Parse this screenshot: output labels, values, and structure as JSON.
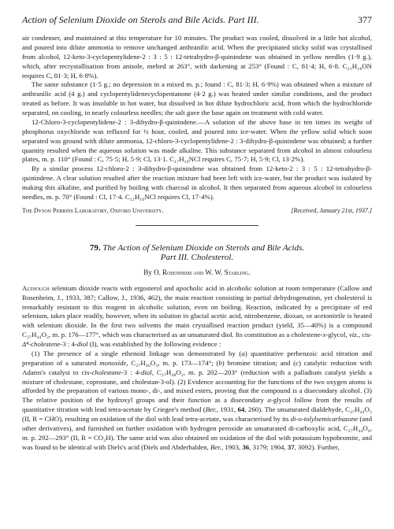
{
  "header": {
    "running_title": "Action of Selenium Dioxide on Sterols and Bile Acids. Part III.",
    "page_number": "377"
  },
  "paragraphs": {
    "p1": "air condenser, and maintained at this temperature for 10 minutes. The product was cooled, dissolved in a little hot alcohol, and poured into dilute ammonia to remove unchanged anthranilic acid. When the precipitated sticky solid was crystallised from alcohol, 12-keto-3-cyclopentylidene-2 : 3 : 5 : 12-tetrahydro-β-quinindene was obtained in yellow needles (1·9 g.), which, after recrystallisation from anisole, melted at 263°, with darkening at 253° (Found : C, 81·4; H, 6·8. C₂₁H₁₈ON requires C, 81·3; H, 6·8%).",
    "p2": "The same substance (1·5 g.; no depression in a mixed m. p.; found : C, 81·3; H, 6·9%) was obtained when a mixture of anthranilic acid (4 g.) and cyclopentylidenecyclopentanone (4·2 g.) was heated under similar conditions, and the product treated as before. It was insoluble in hot water, but dissolved in hot dilute hydrochloric acid, from which the hydrochloride separated, on cooling, in nearly colourless needles; the salt gave the base again on treatment with cold water.",
    "p3": "12-Chloro-3-cyclopentylidene-2 : 3-dihydro-β-quinindene.—A solution of the above base in ten times its weight of phosphorus oxychloride was refluxed for ½ hour, cooled, and poured into ice-water. When the yellow solid which soon separated was ground with dilute ammonia, 12-chloro-3-cyclopentylidene-2 : 3-dihydro-β-quinindene was obtained; a further quantity resulted when the aqueous solution was made alkaline. This substance separated from alcohol in almost colourless plates, m. p. 110° (Found : C, 75·5; H, 5·9; Cl, 13·1. C₁₇H₁₆NCl requires C, 75·7; H, 5·9; Cl, 13·2%).",
    "p4": "By a similar process 12-chloro-2 : 3-dihydro-β-quinindene was obtained from 12-keto-2 : 3 : 5 : 12-tetrahydro-β-quinindene. A clear solution resulted after the reaction mixture had been left with ice-water, but the product was isolated by making this alkaline, and purified by boiling with charcoal in alcohol. It then separated from aqueous alcohol in colourless needles, m. p. 70° (Found : Cl, 17·4. C₁₂H₁₀NCl requires Cl, 17·4%)."
  },
  "lab": {
    "name": "The Dyson Perrins Laboratory, Oxford University.",
    "received": "[Received, January 21st, 1937.]"
  },
  "article": {
    "number": "79.",
    "title_line1": "The Action of Selenium Dioxide on Sterols and Bile Acids.",
    "title_line2": "Part III. Cholesterol.",
    "byline_prefix": "By",
    "authors": "O. Rosenheim and W. W. Starling."
  },
  "body": {
    "b1": "Although selenium dioxide reacts with ergosterol and apocholic acid in alcoholic solution at room temperature (Callow and Rosenheim, J., 1933, 387; Callow, J., 1936, 462), the main reaction consisting in partial dehydrogenation, yet cholesterol is remarkably resistant to this reagent in alcoholic solution, even on boiling. Reaction, indicated by a precipitate of red selenium, takes place readily, however, when its solution in glacial acetic acid, nitrobenzene, dioxan, or acetonitrile is heated with selenium dioxide. In the first two solvents the main crystallised reaction product (yield, 35—40%) is a compound C₂₇H₄₄O₂, m. p. 176—177°, which was characterised as an unsaturated diol. Its constitution as a cholestene-x-glycol, viz., cis-Δ⁴-cholestene-3 : 4-diol (I), was established by the following evidence :",
    "b2": "(1) The presence of a single ethenoid linkage was demonstrated by (a) quantitative perbenzoic acid titration and preparation of a saturated monoxide, C₂₇H₄₆O₃, m. p. 173—174°; (b) bromine titration; and (c) catalytic reduction with Adams's catalyst to cis-cholestane-3 : 4-diol, C₂₇H₄₈O₂, m. p. 202—203° (reduction with a palladium catalyst yields a mixture of cholestane, coprostane, and cholestan-3-ol). (2) Evidence accounting for the functions of the two oxygen atoms is afforded by the preparation of various mono-, di-, and mixed esters, proving that the compound is a disecondary alcohol. (3) The relative position of the hydroxyl groups and their function as a disecondary α-glycol follow from the results of quantitative titration with lead tetra-acetate by Criegee's method (Ber., 1931, 64, 260). The unsaturated dialdehyde, C₂₇H₄₄O₂ (II, R = CHO), resulting on oxidation of the diol with lead tetra-acetate, was characterised by its di-o-tolylsemicarbazone (and other derivatives), and furnished on further oxidation with hydrogen peroxide an unsaturated dicarboxylic acid, C₂₇H₄₄O₄, m. p. 292—293° (II, R = CO₂H). The same acid was also obtained on oxidation of the diol with potassium hypobromite, and was found to be identical with Diels's acid (Diels and Abderhalden, Ber., 1903, 36, 3179; 1904, 37, 3092). Further,"
  }
}
